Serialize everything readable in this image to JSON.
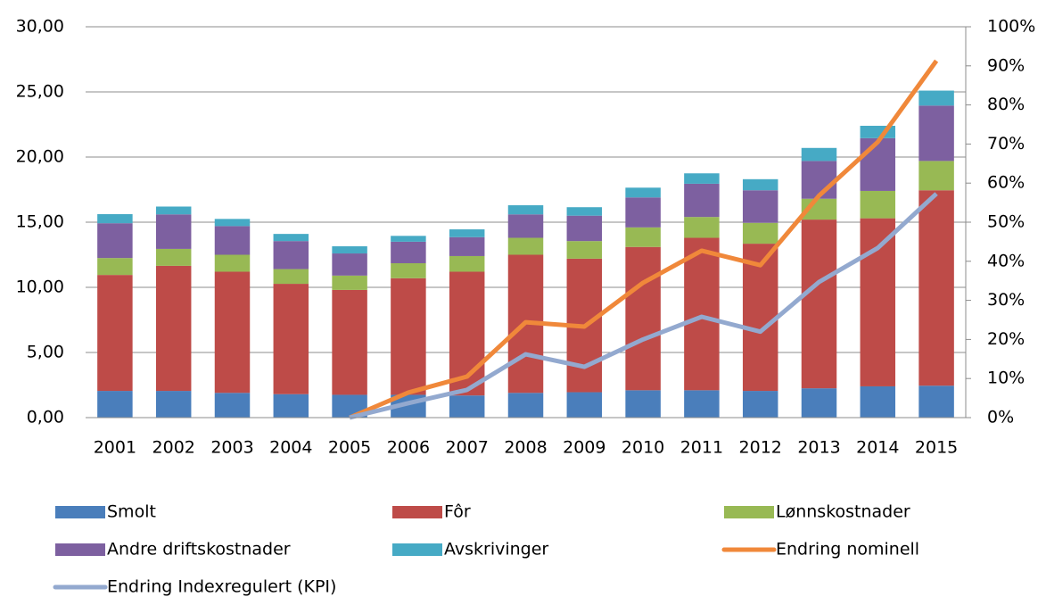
{
  "chart_data": {
    "type": "bar",
    "categories": [
      "2001",
      "2002",
      "2003",
      "2004",
      "2005",
      "2006",
      "2007",
      "2008",
      "2009",
      "2010",
      "2011",
      "2012",
      "2013",
      "2014",
      "2015"
    ],
    "series": [
      {
        "name": "Smolt",
        "color": "#4a7ebb",
        "type": "bar",
        "values": [
          2.05,
          2.05,
          1.9,
          1.8,
          1.75,
          1.75,
          1.7,
          1.9,
          1.95,
          2.1,
          2.1,
          2.05,
          2.25,
          2.4,
          2.45
        ]
      },
      {
        "name": "Fôr",
        "color": "#be4b48",
        "type": "bar",
        "values": [
          8.9,
          9.6,
          9.3,
          8.47,
          8.05,
          8.95,
          9.5,
          10.6,
          10.25,
          11.0,
          11.7,
          11.3,
          12.95,
          12.9,
          15.0
        ]
      },
      {
        "name": "Lønnskostnader",
        "color": "#98b954",
        "type": "bar",
        "values": [
          1.3,
          1.3,
          1.3,
          1.13,
          1.1,
          1.15,
          1.2,
          1.3,
          1.35,
          1.5,
          1.6,
          1.6,
          1.6,
          2.1,
          2.25
        ]
      },
      {
        "name": "Andre driftskostnader",
        "color": "#7d60a0",
        "type": "bar",
        "values": [
          2.67,
          2.65,
          2.2,
          2.15,
          1.7,
          1.65,
          1.45,
          1.8,
          1.95,
          2.3,
          2.55,
          2.5,
          2.9,
          4.05,
          4.25
        ]
      },
      {
        "name": "Avskrivinger",
        "color": "#46aac5",
        "type": "bar",
        "values": [
          0.7,
          0.6,
          0.55,
          0.55,
          0.55,
          0.45,
          0.6,
          0.7,
          0.65,
          0.75,
          0.8,
          0.85,
          1.0,
          0.95,
          1.15
        ]
      },
      {
        "name": "Endring nominell",
        "color": "#f0883a",
        "type": "line",
        "axis": "y2",
        "values": [
          null,
          null,
          null,
          null,
          0,
          6.4,
          10.5,
          24.4,
          23.3,
          34.5,
          42.7,
          39,
          56.8,
          70.5,
          91.3
        ]
      },
      {
        "name": "Endring Indexregulert (KPI)",
        "color": "#93a9cf",
        "type": "line",
        "axis": "y2",
        "values": [
          null,
          null,
          null,
          null,
          0,
          3.7,
          7.1,
          16.2,
          13,
          20,
          25.8,
          22,
          34.7,
          43.4,
          57.3
        ]
      }
    ],
    "ylim": [
      0,
      30
    ],
    "yticks": [
      {
        "value": 0,
        "label": "0,00"
      },
      {
        "value": 5,
        "label": "5,00"
      },
      {
        "value": 10,
        "label": "10,00"
      },
      {
        "value": 15,
        "label": "15,00"
      },
      {
        "value": 20,
        "label": "20,00"
      },
      {
        "value": 25,
        "label": "25,00"
      },
      {
        "value": 30,
        "label": "30,00"
      }
    ],
    "y2lim": [
      0,
      100
    ],
    "y2ticks": [
      {
        "value": 0,
        "label": "0%"
      },
      {
        "value": 10,
        "label": "10%"
      },
      {
        "value": 20,
        "label": "20%"
      },
      {
        "value": 30,
        "label": "30%"
      },
      {
        "value": 40,
        "label": "40%"
      },
      {
        "value": 50,
        "label": "50%"
      },
      {
        "value": 60,
        "label": "60%"
      },
      {
        "value": 70,
        "label": "70%"
      },
      {
        "value": 80,
        "label": "80%"
      },
      {
        "value": 90,
        "label": "90%"
      },
      {
        "value": 100,
        "label": "100%"
      }
    ],
    "grid": true
  }
}
